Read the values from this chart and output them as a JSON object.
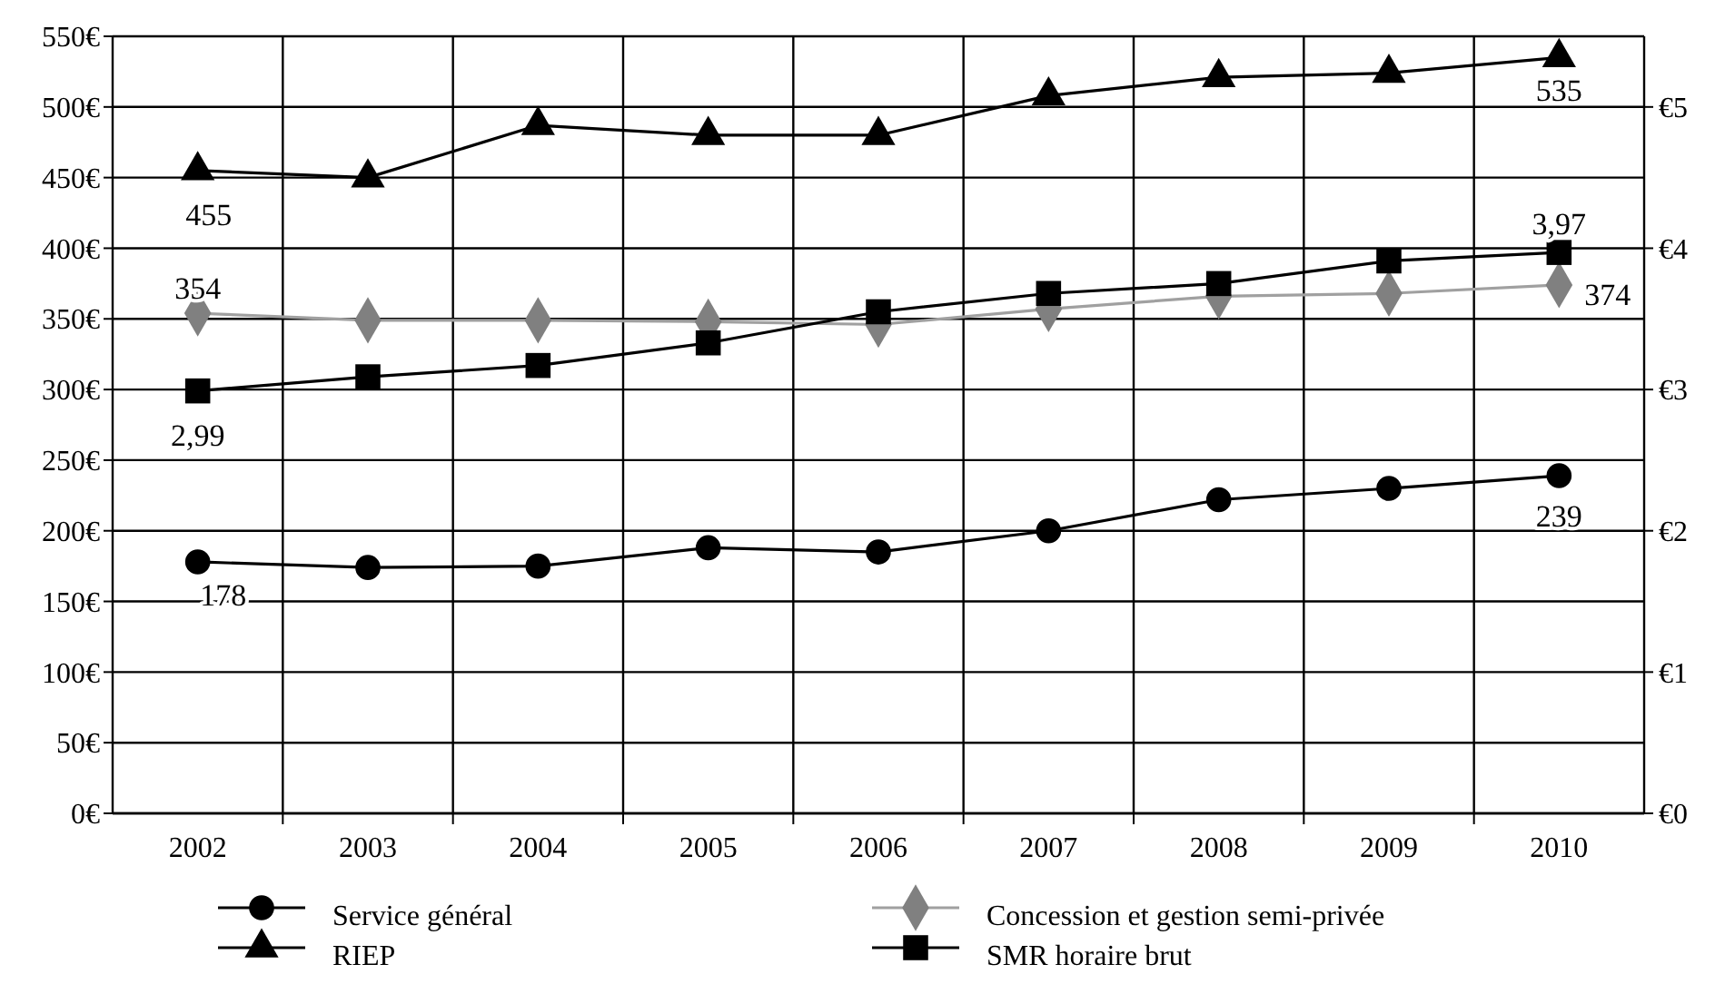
{
  "chart_data": {
    "type": "line",
    "categories": [
      "2002",
      "2003",
      "2004",
      "2005",
      "2006",
      "2007",
      "2008",
      "2009",
      "2010"
    ],
    "ylim": [
      0,
      550
    ],
    "yticks": [
      {
        "value": 0,
        "label": "0€"
      },
      {
        "value": 50,
        "label": "50€"
      },
      {
        "value": 100,
        "label": "100€"
      },
      {
        "value": 150,
        "label": "150€"
      },
      {
        "value": 200,
        "label": "200€"
      },
      {
        "value": 250,
        "label": "250€"
      },
      {
        "value": 300,
        "label": "300€"
      },
      {
        "value": 350,
        "label": "350€"
      },
      {
        "value": 400,
        "label": "400€"
      },
      {
        "value": 450,
        "label": "450€"
      },
      {
        "value": 500,
        "label": "500€"
      },
      {
        "value": 550,
        "label": "550€"
      }
    ],
    "y2lim": [
      0,
      5.5
    ],
    "y2ticks": [
      {
        "value": 0,
        "label": "€0"
      },
      {
        "value": 1,
        "label": "€1"
      },
      {
        "value": 2,
        "label": "€2"
      },
      {
        "value": 3,
        "label": "€3"
      },
      {
        "value": 4,
        "label": "€4"
      },
      {
        "value": 5,
        "label": "€5"
      }
    ],
    "grid": true,
    "legend": "bottom",
    "line_style": "solid",
    "series": [
      {
        "name": "Service général",
        "color": "#000000",
        "marker": "circle",
        "values": [
          178,
          174,
          175,
          188,
          185,
          200,
          222,
          230,
          239
        ],
        "value_labels": [
          "178",
          null,
          null,
          null,
          null,
          null,
          null,
          null,
          "239"
        ]
      },
      {
        "name": "Concession et gestion semi-privée",
        "color": "#808080",
        "marker": "diamond",
        "values": [
          354,
          349,
          349,
          348,
          346,
          357,
          366,
          368,
          374
        ],
        "value_labels": [
          "354",
          null,
          null,
          null,
          null,
          null,
          null,
          null,
          "374"
        ]
      },
      {
        "name": "RIEP",
        "color": "#000000",
        "marker": "triangle",
        "values": [
          455,
          450,
          487,
          480,
          480,
          508,
          521,
          524,
          535
        ],
        "value_labels": [
          "455",
          null,
          null,
          null,
          null,
          null,
          null,
          null,
          "535"
        ]
      },
      {
        "name": "SMR horaire brut",
        "color": "#000000",
        "marker": "square",
        "axis": "y2",
        "values": [
          2.99,
          3.09,
          3.17,
          3.33,
          3.55,
          3.68,
          3.75,
          3.91,
          3.97
        ],
        "value_labels": [
          "2,99",
          null,
          null,
          null,
          null,
          null,
          null,
          null,
          "3,97"
        ]
      }
    ]
  }
}
